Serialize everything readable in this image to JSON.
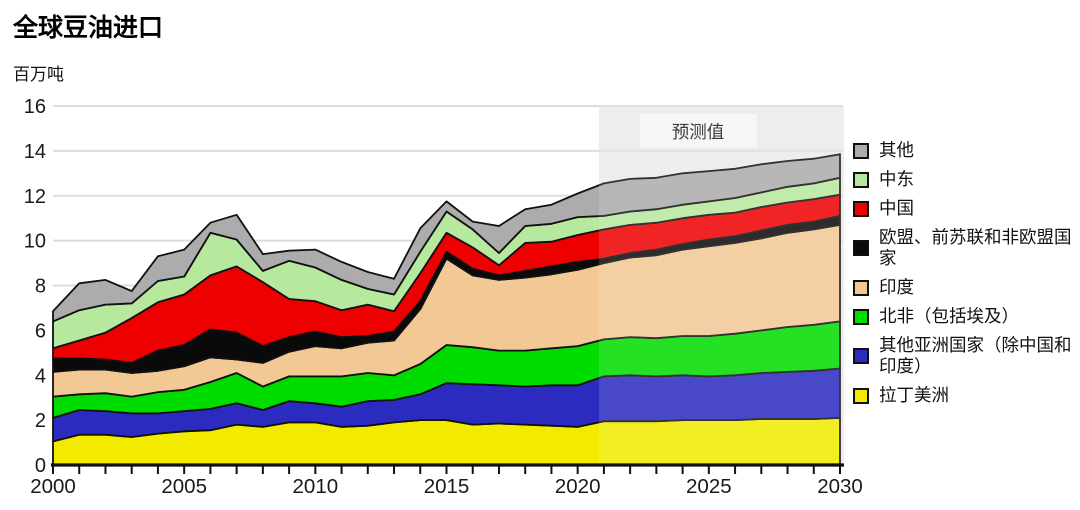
{
  "header": {
    "title": "全球豆油进口",
    "unit_label": "百万吨"
  },
  "colors": {
    "grid": "#DCDCDC",
    "axis": "#111111",
    "area_outline": "#111111",
    "forecast_band": "#EAEAEA",
    "forecast_label_bg": "#F5F5F5",
    "forecast_overlay": "rgba(255,255,255,0.14)",
    "text": "#1A1A1A"
  },
  "chart_data": {
    "type": "area",
    "stacked": true,
    "title": "全球豆油进口",
    "ylabel": "百万吨",
    "xlabel": "",
    "xlim": [
      2000,
      2030
    ],
    "ylim": [
      0,
      16
    ],
    "grid": "horizontal",
    "legend_position": "right",
    "legend_order": "top-to-bottom (reverse of stack order)",
    "x_tick_labels": [
      2000,
      2005,
      2010,
      2015,
      2020,
      2025,
      2030
    ],
    "y_ticks": [
      0,
      2,
      4,
      6,
      8,
      10,
      12,
      14,
      16
    ],
    "forecast": {
      "label": "预测值",
      "start_year": 2021,
      "end_year": 2030
    },
    "x": [
      2000,
      2001,
      2002,
      2003,
      2004,
      2005,
      2006,
      2007,
      2008,
      2009,
      2010,
      2011,
      2012,
      2013,
      2014,
      2015,
      2016,
      2017,
      2018,
      2019,
      2020,
      2021,
      2022,
      2023,
      2024,
      2025,
      2026,
      2027,
      2028,
      2029,
      2030
    ],
    "series": [
      {
        "name": "拉丁美洲",
        "color": "#F2EB00",
        "values": [
          1.05,
          1.35,
          1.35,
          1.25,
          1.4,
          1.5,
          1.55,
          1.8,
          1.7,
          1.9,
          1.9,
          1.7,
          1.75,
          1.9,
          2.0,
          2.0,
          1.8,
          1.85,
          1.8,
          1.75,
          1.7,
          1.95,
          1.95,
          1.95,
          2.0,
          2.0,
          2.0,
          2.05,
          2.05,
          2.05,
          2.1
        ]
      },
      {
        "name": "其他亚洲国家（除中国和印度）",
        "color": "#2B2BBF",
        "values": [
          1.05,
          1.1,
          1.05,
          1.05,
          0.9,
          0.9,
          0.95,
          0.95,
          0.75,
          0.95,
          0.85,
          0.9,
          1.1,
          1.0,
          1.15,
          1.65,
          1.8,
          1.7,
          1.7,
          1.8,
          1.85,
          2.0,
          2.05,
          2.0,
          2.0,
          1.95,
          2.0,
          2.05,
          2.1,
          2.15,
          2.2
        ]
      },
      {
        "name": "北非（包括埃及）",
        "color": "#00DC00",
        "values": [
          0.95,
          0.7,
          0.8,
          0.75,
          0.95,
          0.95,
          1.2,
          1.35,
          1.05,
          1.1,
          1.2,
          1.35,
          1.25,
          1.1,
          1.35,
          1.7,
          1.65,
          1.55,
          1.6,
          1.65,
          1.75,
          1.65,
          1.7,
          1.7,
          1.75,
          1.8,
          1.85,
          1.9,
          2.0,
          2.05,
          2.1
        ]
      },
      {
        "name": "印度",
        "color": "#F2C894",
        "values": [
          1.1,
          1.1,
          1.05,
          1.05,
          0.95,
          1.05,
          1.1,
          0.6,
          1.05,
          1.1,
          1.35,
          1.25,
          1.35,
          1.55,
          2.45,
          3.85,
          3.2,
          3.15,
          3.25,
          3.3,
          3.4,
          3.4,
          3.55,
          3.7,
          3.85,
          4.0,
          4.05,
          4.1,
          4.2,
          4.25,
          4.3
        ]
      },
      {
        "name": "欧盟、前苏联和非欧盟国家",
        "color": "#0A0A0A",
        "values": [
          0.6,
          0.5,
          0.45,
          0.45,
          0.9,
          0.95,
          1.25,
          1.2,
          0.75,
          0.65,
          0.65,
          0.5,
          0.3,
          0.4,
          0.35,
          0.3,
          0.3,
          0.2,
          0.3,
          0.35,
          0.35,
          0.2,
          0.2,
          0.25,
          0.25,
          0.3,
          0.3,
          0.35,
          0.35,
          0.35,
          0.4
        ]
      },
      {
        "name": "中国",
        "color": "#EE0000",
        "values": [
          0.45,
          0.8,
          1.2,
          2.0,
          2.15,
          2.25,
          2.4,
          2.95,
          2.85,
          1.7,
          1.35,
          1.2,
          1.4,
          0.9,
          1.25,
          0.85,
          0.95,
          0.45,
          1.25,
          1.1,
          1.2,
          1.3,
          1.25,
          1.2,
          1.15,
          1.1,
          1.05,
          1.05,
          1.0,
          1.0,
          0.95
        ]
      },
      {
        "name": "中东",
        "color": "#B6E89E",
        "values": [
          1.2,
          1.35,
          1.25,
          0.65,
          0.95,
          0.8,
          1.9,
          1.2,
          0.5,
          1.7,
          1.5,
          1.35,
          0.7,
          0.75,
          0.95,
          0.95,
          0.8,
          0.55,
          0.75,
          0.8,
          0.8,
          0.6,
          0.6,
          0.6,
          0.6,
          0.6,
          0.65,
          0.65,
          0.7,
          0.7,
          0.75
        ]
      },
      {
        "name": "其他",
        "color": "#ACACAC",
        "values": [
          0.45,
          1.2,
          1.1,
          0.55,
          1.1,
          1.2,
          0.45,
          1.1,
          0.75,
          0.45,
          0.8,
          0.8,
          0.75,
          0.7,
          1.05,
          0.45,
          0.35,
          1.2,
          0.75,
          0.85,
          1.05,
          1.45,
          1.45,
          1.4,
          1.4,
          1.35,
          1.3,
          1.25,
          1.15,
          1.1,
          1.05
        ]
      }
    ]
  }
}
